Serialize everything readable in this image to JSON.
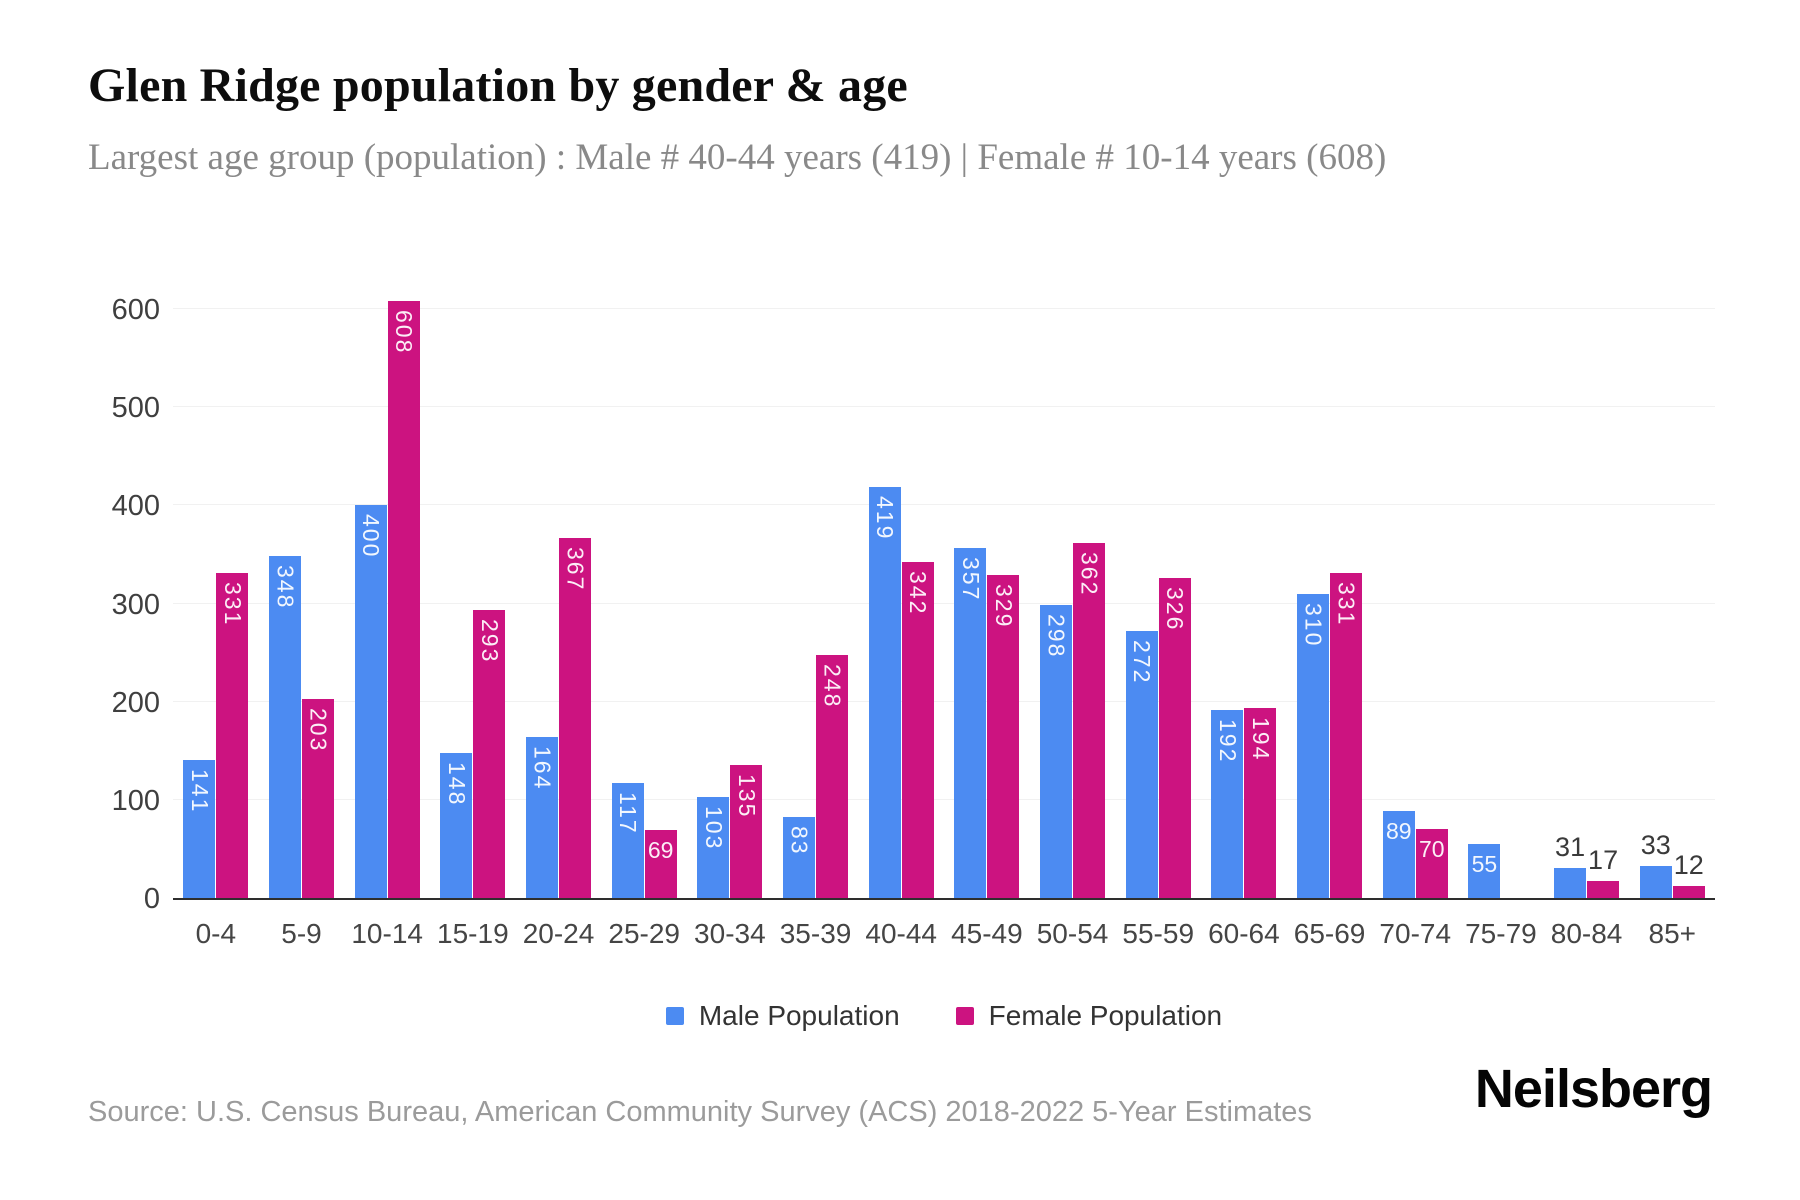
{
  "header": {
    "title": "Glen Ridge population by gender & age",
    "subtitle": "Largest age group (population) : Male # 40-44 years (419) | Female # 10-14 years (608)"
  },
  "colors": {
    "male": "#4c8bf2",
    "female": "#cc1380",
    "grid": "#f1f1f1",
    "axis_line": "#2e2e2e",
    "axis_text": "#3f3f3f"
  },
  "chart_data": {
    "type": "bar",
    "title": "Glen Ridge population by gender & age",
    "xlabel": "",
    "ylabel": "",
    "categories": [
      "0-4",
      "5-9",
      "10-14",
      "15-19",
      "20-24",
      "25-29",
      "30-34",
      "35-39",
      "40-44",
      "45-49",
      "50-54",
      "55-59",
      "60-64",
      "65-69",
      "70-74",
      "75-79",
      "80-84",
      "85+"
    ],
    "series": [
      {
        "name": "Male Population",
        "color_key": "male",
        "values": [
          141,
          348,
          400,
          148,
          164,
          117,
          103,
          83,
          419,
          357,
          298,
          272,
          192,
          310,
          89,
          55,
          31,
          33
        ],
        "label_styles": [
          "v",
          "v",
          "v",
          "v",
          "v",
          "v",
          "v",
          "v",
          "v",
          "v",
          "v",
          "v",
          "v",
          "v",
          "h",
          "h",
          "a",
          "a"
        ]
      },
      {
        "name": "Female Population",
        "color_key": "female",
        "values": [
          331,
          203,
          608,
          293,
          367,
          69,
          135,
          248,
          342,
          329,
          362,
          326,
          194,
          331,
          70,
          0,
          17,
          12
        ],
        "label_styles": [
          "v",
          "v",
          "v",
          "v",
          "v",
          "h",
          "v",
          "v",
          "v",
          "v",
          "v",
          "v",
          "v",
          "v",
          "h",
          "",
          "a",
          "a"
        ]
      }
    ],
    "y_ticks": [
      0,
      100,
      200,
      300,
      400,
      500,
      600
    ],
    "ylim": [
      0,
      620
    ],
    "grid": "horizontal",
    "legend_position": "bottom"
  },
  "legend": {
    "items": [
      {
        "label": "Male Population",
        "color_key": "male"
      },
      {
        "label": "Female Population",
        "color_key": "female"
      }
    ]
  },
  "footer": {
    "source": "Source: U.S. Census Bureau, American Community Survey (ACS) 2018-2022 5-Year Estimates",
    "brand": "Neilsberg"
  }
}
